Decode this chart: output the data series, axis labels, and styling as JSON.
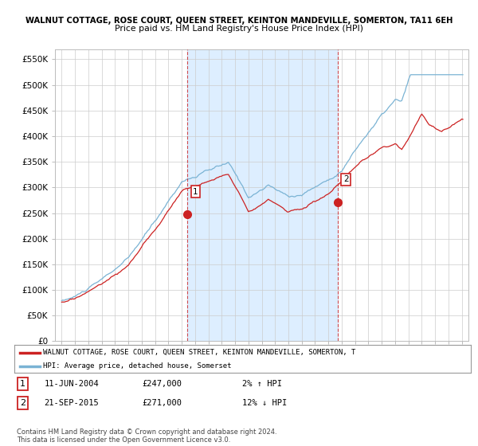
{
  "title_main": "WALNUT COTTAGE, ROSE COURT, QUEEN STREET, KEINTON MANDEVILLE, SOMERTON, TA11 6EH",
  "title_sub": "Price paid vs. HM Land Registry's House Price Index (HPI)",
  "ylabel_ticks": [
    "£0",
    "£50K",
    "£100K",
    "£150K",
    "£200K",
    "£250K",
    "£300K",
    "£350K",
    "£400K",
    "£450K",
    "£500K",
    "£550K"
  ],
  "ytick_values": [
    0,
    50000,
    100000,
    150000,
    200000,
    250000,
    300000,
    350000,
    400000,
    450000,
    500000,
    550000
  ],
  "ylim": [
    0,
    570000
  ],
  "xlim_start": 1994.5,
  "xlim_end": 2025.5,
  "xtick_years": [
    1995,
    1996,
    1997,
    1998,
    1999,
    2000,
    2001,
    2002,
    2003,
    2004,
    2005,
    2006,
    2007,
    2008,
    2009,
    2010,
    2011,
    2012,
    2013,
    2014,
    2015,
    2016,
    2017,
    2018,
    2019,
    2020,
    2021,
    2022,
    2023,
    2024,
    2025
  ],
  "hpi_color": "#7ab3d4",
  "price_color": "#cc2222",
  "shade_color": "#ddeeff",
  "sale1_x": 2004.44,
  "sale1_y": 247000,
  "sale1_label": "1",
  "sale2_x": 2015.72,
  "sale2_y": 271000,
  "sale2_label": "2",
  "legend_price_label": "WALNUT COTTAGE, ROSE COURT, QUEEN STREET, KEINTON MANDEVILLE, SOMERTON, T",
  "legend_hpi_label": "HPI: Average price, detached house, Somerset",
  "note1_label": "1",
  "note1_date": "11-JUN-2004",
  "note1_price": "£247,000",
  "note1_hpi": "2% ↑ HPI",
  "note2_label": "2",
  "note2_date": "21-SEP-2015",
  "note2_price": "£271,000",
  "note2_hpi": "12% ↓ HPI",
  "footer": "Contains HM Land Registry data © Crown copyright and database right 2024.\nThis data is licensed under the Open Government Licence v3.0.",
  "bg_color": "#ffffff",
  "grid_color": "#cccccc",
  "vline1_x": 2004.44,
  "vline2_x": 2015.72
}
